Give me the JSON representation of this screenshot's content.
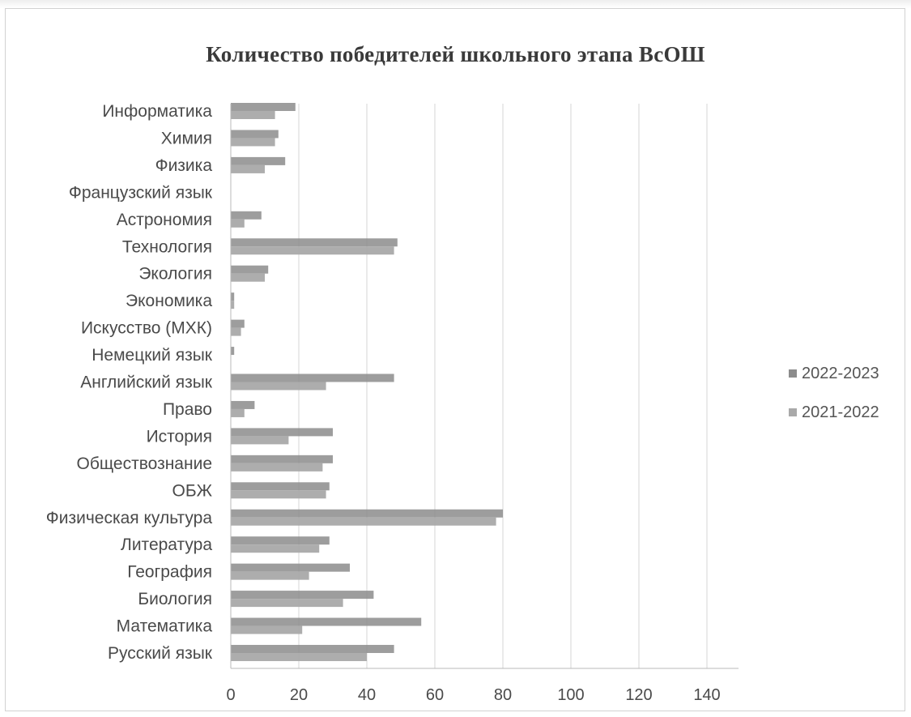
{
  "chart_data": {
    "type": "bar",
    "orientation": "horizontal",
    "title": "Количество победителей школьного этапа ВсОШ",
    "xlabel": "",
    "ylabel": "",
    "xlim": [
      0,
      150
    ],
    "x_ticks": [
      "0",
      "20",
      "40",
      "60",
      "80",
      "100",
      "120",
      "140"
    ],
    "grid": true,
    "legend_position": "right",
    "categories": [
      "Русский язык",
      "Математика",
      "Биология",
      "География",
      "Литература",
      "Физическая культура",
      "ОБЖ",
      "Обществознание",
      "История",
      "Право",
      "Английский язык",
      "Немецкий язык",
      "Искусство (МХК)",
      "Экономика",
      "Экология",
      "Технология",
      "Астрономия",
      "Французский язык",
      "Физика",
      "Химия",
      "Информатика"
    ],
    "series": [
      {
        "name": "2022-2023",
        "color": "#8c8c8c",
        "values": [
          48,
          56,
          42,
          35,
          29,
          80,
          29,
          30,
          30,
          7,
          48,
          1,
          4,
          1,
          11,
          49,
          9,
          0,
          16,
          14,
          19
        ]
      },
      {
        "name": "2021-2022",
        "color": "#a9a9a9",
        "values": [
          40,
          21,
          33,
          23,
          26,
          78,
          28,
          27,
          17,
          4,
          28,
          0,
          3,
          1,
          10,
          48,
          4,
          0,
          10,
          13,
          13
        ]
      }
    ]
  }
}
